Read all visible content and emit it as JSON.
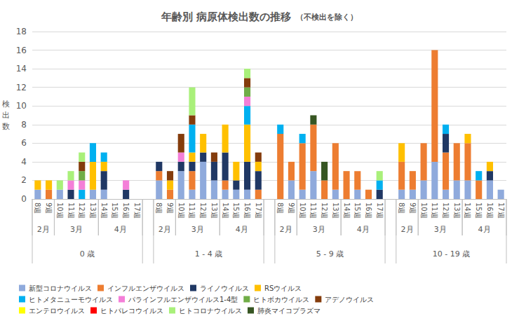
{
  "chart_data": {
    "type": "bar",
    "title": "年齢別 病原体検出数の推移",
    "subtitle": "（不検出を除く）",
    "y_label": "検出数",
    "stacked": true,
    "grid": true,
    "legend": "bottom",
    "ylim": [
      0,
      18
    ],
    "yticks": [
      0,
      2,
      4,
      6,
      8,
      10,
      12,
      14,
      16,
      18
    ],
    "categories": [
      "8週",
      "9週",
      "10週",
      "11週",
      "12週",
      "13週",
      "14週",
      "15週",
      "16週",
      "17週",
      null,
      "8週",
      "9週",
      "10週",
      "11週",
      "12週",
      "13週",
      "14週",
      "15週",
      "16週",
      "17週",
      null,
      "8週",
      "9週",
      "10週",
      "11週",
      "12週",
      "13週",
      "14週",
      "15週",
      "16週",
      "17週",
      null,
      "8週",
      "9週",
      "10週",
      "11週",
      "12週",
      "13週",
      "14週",
      "15週",
      "16週",
      "17週"
    ],
    "x_groups": [
      {
        "label": "0 歳",
        "months": [
          {
            "label": "2月",
            "span": 2
          },
          {
            "label": "3月",
            "span": 4
          },
          {
            "label": "4月",
            "span": 4
          }
        ]
      },
      {
        "label": "1 - 4 歳",
        "months": [
          {
            "label": "2月",
            "span": 2
          },
          {
            "label": "3月",
            "span": 4
          },
          {
            "label": "4月",
            "span": 4
          }
        ]
      },
      {
        "label": "5 - 9 歳",
        "months": [
          {
            "label": "2月",
            "span": 2
          },
          {
            "label": "3月",
            "span": 4
          },
          {
            "label": "4月",
            "span": 4
          }
        ]
      },
      {
        "label": "10 - 19 歳",
        "months": [
          {
            "label": "2月",
            "span": 2
          },
          {
            "label": "3月",
            "span": 4
          },
          {
            "label": "4月",
            "span": 4
          }
        ]
      }
    ],
    "series": [
      {
        "name": "新型コロナウイルス",
        "color": "#8faadc",
        "values": [
          1,
          0,
          1,
          0,
          0,
          1,
          1,
          0,
          0,
          0,
          null,
          2,
          0,
          3,
          1,
          4,
          2,
          1,
          1,
          1,
          0,
          null,
          0,
          2,
          1,
          3,
          0,
          1,
          0,
          1,
          0,
          0,
          null,
          1,
          1,
          2,
          4,
          1,
          2,
          2,
          0,
          2,
          1
        ]
      },
      {
        "name": "インフルエンザウイルス",
        "color": "#ed7d31",
        "values": [
          0,
          1,
          0,
          0,
          0,
          0,
          0,
          0,
          0,
          0,
          null,
          1,
          1,
          0,
          2,
          0,
          0,
          1,
          0,
          0,
          1,
          null,
          7,
          2,
          5,
          5,
          2,
          5,
          3,
          2,
          1,
          0,
          null,
          3,
          2,
          4,
          12,
          4,
          4,
          4,
          2,
          0,
          0
        ]
      },
      {
        "name": "ライノウイルス",
        "color": "#203864",
        "values": [
          0,
          0,
          0,
          1,
          0,
          0,
          2,
          0,
          1,
          0,
          null,
          1,
          0,
          1,
          1,
          1,
          2,
          3,
          1,
          3,
          2,
          null,
          0,
          0,
          0,
          0,
          0,
          0,
          0,
          0,
          0,
          1,
          null,
          0,
          0,
          0,
          0,
          2,
          0,
          0,
          0,
          1,
          0
        ]
      },
      {
        "name": "RSウイルス",
        "color": "#ffc000",
        "values": [
          1,
          1,
          0,
          0,
          0,
          3,
          1,
          0,
          0,
          0,
          null,
          0,
          1,
          0,
          1,
          2,
          0,
          3,
          2,
          4,
          1,
          null,
          0,
          0,
          0,
          0,
          0,
          0,
          0,
          0,
          0,
          0,
          null,
          2,
          0,
          0,
          0,
          0,
          0,
          1,
          0,
          1,
          0
        ]
      },
      {
        "name": "ヒトメタニューモウイルス",
        "color": "#00b0f0",
        "values": [
          0,
          0,
          0,
          0,
          1,
          2,
          1,
          0,
          0,
          0,
          null,
          0,
          0,
          0,
          3,
          0,
          0,
          0,
          0,
          2,
          0,
          null,
          1,
          0,
          1,
          0,
          0,
          0,
          0,
          0,
          0,
          1,
          null,
          0,
          0,
          0,
          0,
          1,
          0,
          0,
          1,
          0,
          0
        ]
      },
      {
        "name": "パラインフルエンザウイルス1-4型",
        "color": "#f47fd8",
        "values": [
          0,
          0,
          0,
          1,
          1,
          0,
          0,
          0,
          1,
          0,
          null,
          0,
          0,
          1,
          0,
          0,
          0,
          0,
          0,
          1,
          0,
          null,
          0,
          0,
          0,
          0,
          0,
          0,
          0,
          0,
          0,
          0,
          null,
          0,
          0,
          0,
          0,
          0,
          0,
          0,
          0,
          0,
          0
        ]
      },
      {
        "name": "ヒトボカウイルス",
        "color": "#70ad47",
        "values": [
          0,
          0,
          0,
          0,
          1,
          0,
          0,
          0,
          0,
          0,
          null,
          0,
          0,
          0,
          0,
          0,
          0,
          0,
          0,
          1,
          0,
          null,
          0,
          0,
          0,
          0,
          0,
          0,
          0,
          0,
          0,
          0,
          null,
          0,
          0,
          0,
          0,
          0,
          0,
          0,
          0,
          0,
          0
        ]
      },
      {
        "name": "アデノウイルス",
        "color": "#843c0c",
        "values": [
          0,
          0,
          0,
          0,
          1,
          0,
          0,
          0,
          0,
          0,
          null,
          0,
          1,
          2,
          1,
          0,
          1,
          0,
          0,
          1,
          1,
          null,
          0,
          0,
          0,
          0,
          0,
          0,
          0,
          0,
          0,
          0,
          null,
          0,
          0,
          0,
          0,
          0,
          0,
          0,
          0,
          0,
          0
        ]
      },
      {
        "name": "エンテロウイルス",
        "color": "#ffff00",
        "values": [
          0,
          0,
          0,
          0,
          0,
          0,
          0,
          0,
          0,
          0,
          null,
          0,
          0,
          0,
          0,
          0,
          0,
          0,
          0,
          0,
          0,
          null,
          0,
          0,
          0,
          0,
          0,
          0,
          0,
          0,
          0,
          0,
          null,
          0,
          0,
          0,
          0,
          0,
          0,
          0,
          0,
          0,
          0
        ]
      },
      {
        "name": "ヒトパレコウイルス",
        "color": "#ff0000",
        "values": [
          0,
          0,
          0,
          0,
          0,
          0,
          0,
          0,
          0,
          0,
          null,
          0,
          0,
          0,
          0,
          0,
          0,
          0,
          0,
          0,
          0,
          null,
          0,
          0,
          0,
          0,
          0,
          0,
          0,
          0,
          0,
          0,
          null,
          0,
          0,
          0,
          0,
          0,
          0,
          0,
          0,
          0,
          0
        ]
      },
      {
        "name": "ヒトコロナウイルス",
        "color": "#a9f07a",
        "values": [
          0,
          0,
          1,
          1,
          1,
          0,
          0,
          0,
          0,
          0,
          null,
          0,
          0,
          0,
          3,
          0,
          0,
          0,
          0,
          1,
          0,
          null,
          0,
          0,
          0,
          0,
          0,
          0,
          0,
          0,
          0,
          1,
          null,
          0,
          0,
          0,
          0,
          0,
          0,
          0,
          0,
          0,
          0
        ]
      },
      {
        "name": "肺炎マイコプラズマ",
        "color": "#375623",
        "values": [
          0,
          0,
          0,
          0,
          0,
          0,
          0,
          0,
          0,
          0,
          null,
          0,
          0,
          0,
          0,
          0,
          0,
          0,
          0,
          0,
          0,
          null,
          0,
          0,
          0,
          1,
          2,
          0,
          0,
          0,
          0,
          0,
          null,
          0,
          0,
          0,
          0,
          0,
          0,
          0,
          0,
          0,
          0
        ]
      }
    ]
  }
}
